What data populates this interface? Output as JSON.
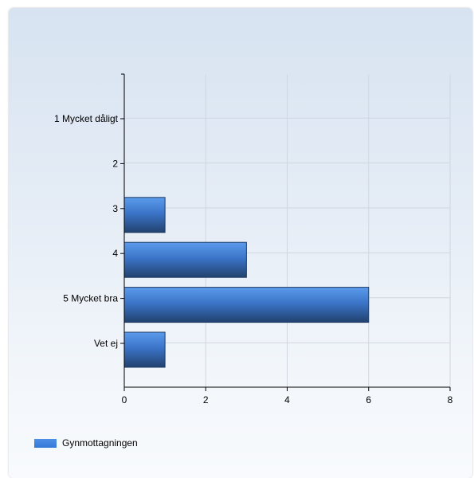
{
  "chart_data": {
    "type": "bar",
    "orientation": "horizontal",
    "title": "",
    "xlabel": "",
    "ylabel": "",
    "categories": [
      "1 Mycket dåligt",
      "2",
      "3",
      "4",
      "5 Mycket bra",
      "Vet ej"
    ],
    "series": [
      {
        "name": "Gynmottagningen",
        "values": [
          0,
          0,
          1,
          3,
          6,
          1
        ]
      }
    ],
    "xlim": [
      0,
      8
    ],
    "xticks": [
      "0",
      "2",
      "4",
      "6",
      "8"
    ],
    "grid": true,
    "legend_position": "bottom-left",
    "colors": {
      "bar_top": "#5b9bec",
      "bar_bottom": "#22426f",
      "grid": "#cfd6df",
      "axis": "#000000"
    }
  }
}
